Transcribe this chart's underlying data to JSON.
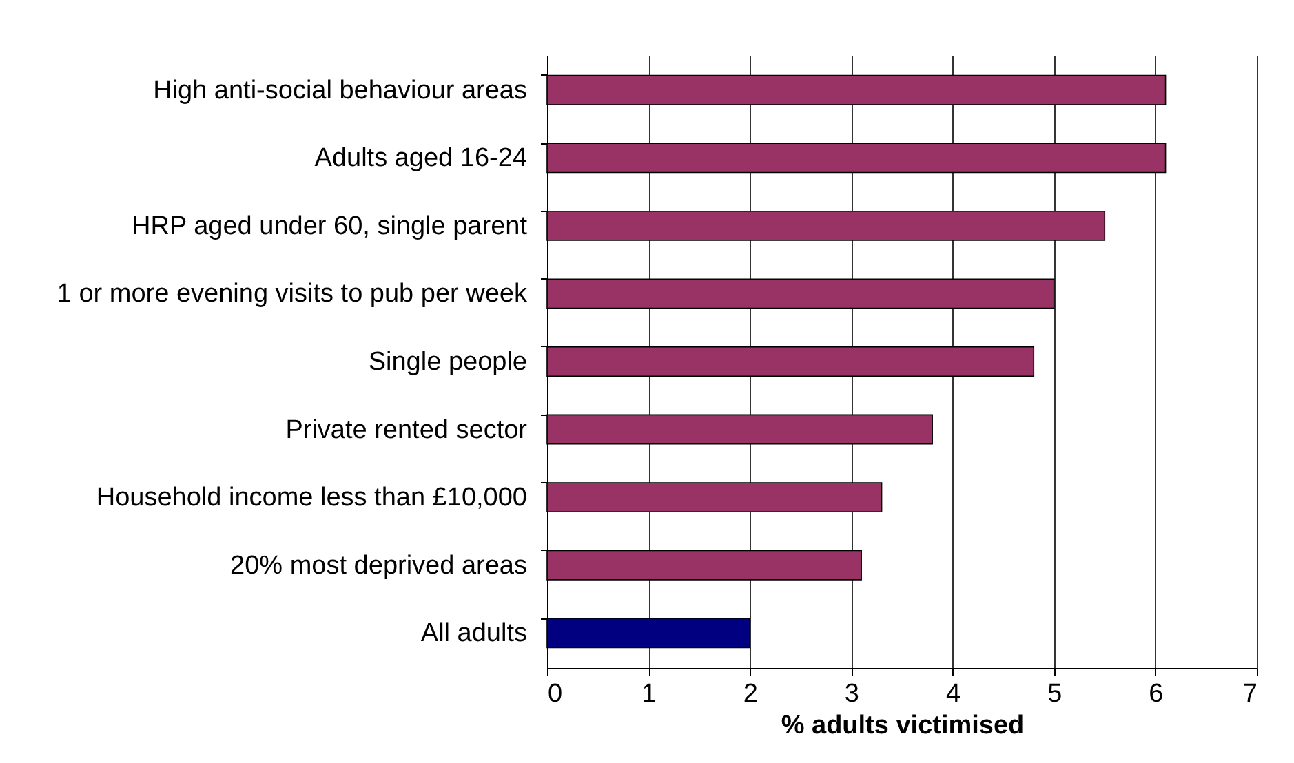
{
  "chart_data": {
    "type": "bar",
    "orientation": "horizontal",
    "xlabel": "% adults victimised",
    "categories": [
      "High anti-social behaviour areas",
      "Adults aged 16-24",
      "HRP aged under 60, single parent",
      "1 or more evening visits to pub per week",
      "Single people",
      "Private rented sector",
      "Household income less than £10,000",
      "20% most deprived areas",
      "All adults"
    ],
    "values": [
      6.1,
      6.1,
      5.5,
      5.0,
      4.8,
      3.8,
      3.3,
      3.1,
      2.0
    ],
    "colors": [
      "#993366",
      "#993366",
      "#993366",
      "#993366",
      "#993366",
      "#993366",
      "#993366",
      "#993366",
      "#000080"
    ],
    "xlim": [
      0,
      7
    ],
    "xticks": [
      0,
      1,
      2,
      3,
      4,
      5,
      6,
      7
    ],
    "grid": "x"
  }
}
